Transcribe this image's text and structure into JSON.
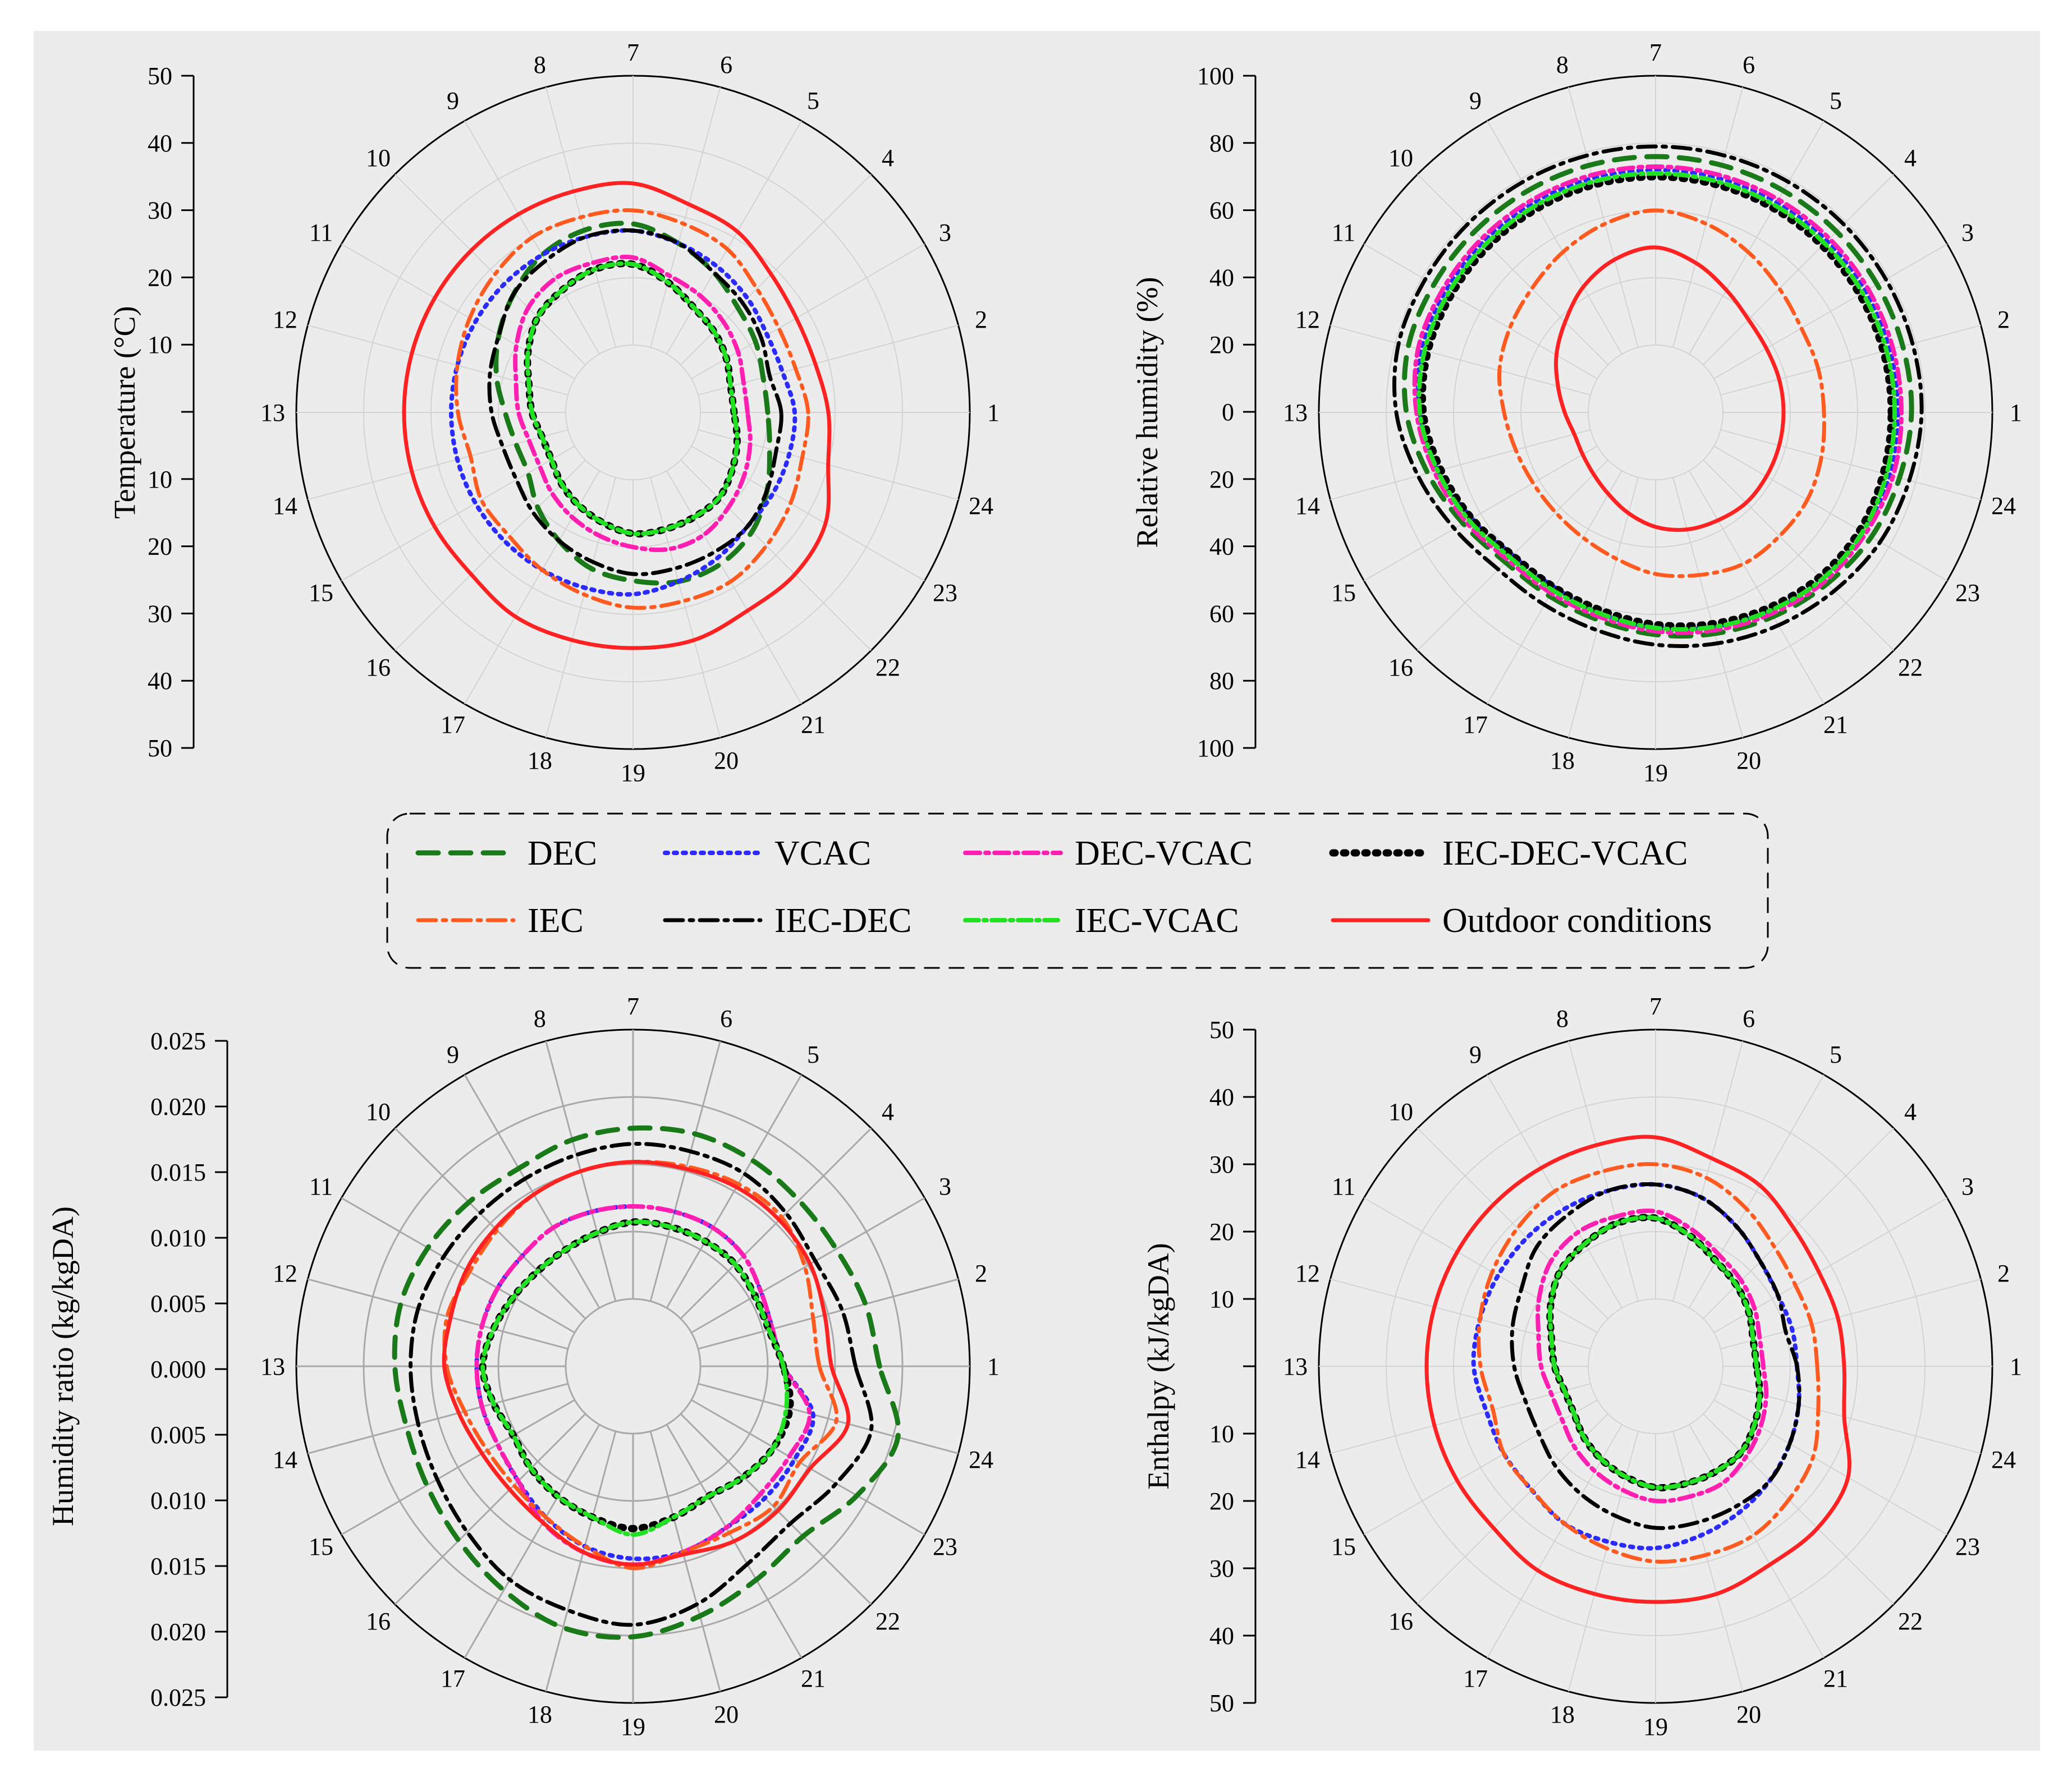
{
  "legend": {
    "items": [
      {
        "label": "DEC",
        "color": "#1a7a1a",
        "dash": "36,22",
        "width": 9
      },
      {
        "label": "VCAC",
        "color": "#2b2bff",
        "dash": "5,11",
        "width": 8
      },
      {
        "label": "DEC-VCAC",
        "color": "#ff1fb0",
        "dash": "26,10,6,10",
        "width": 8
      },
      {
        "label": "IEC-DEC-VCAC",
        "color": "#000000",
        "dash": "4,15",
        "width": 13
      },
      {
        "label": "IEC",
        "color": "#ff5a1f",
        "dash": "32,12,6,12",
        "width": 7
      },
      {
        "label": "IEC-DEC",
        "color": "#000000",
        "dash": "32,12,6,12",
        "width": 7
      },
      {
        "label": "IEC-VCAC",
        "color": "#22e022",
        "dash": "24,9,5,9",
        "width": 8
      },
      {
        "label": "Outdoor conditions",
        "color": "#ff2222",
        "dash": "",
        "width": 7
      }
    ]
  },
  "hour_labels": [
    "1",
    "2",
    "3",
    "4",
    "5",
    "6",
    "7",
    "8",
    "9",
    "10",
    "11",
    "12",
    "13",
    "14",
    "15",
    "16",
    "17",
    "18",
    "19",
    "20",
    "21",
    "22",
    "23",
    "24"
  ],
  "chart_data": [
    {
      "type": "radar",
      "id": "temperature",
      "ylabel": "Temperature (°C)",
      "radial_range": [
        0,
        50
      ],
      "axis_ticks": [
        "50",
        "40",
        "30",
        "20",
        "10",
        "",
        "10",
        "20",
        "30",
        "40",
        "50"
      ],
      "grid_color": "#d3d3d3",
      "series": [
        {
          "name": "DEC",
          "values": [
            20,
            20,
            21,
            22,
            24,
            26,
            28,
            28,
            27,
            25,
            23,
            21,
            19,
            18,
            18,
            20,
            22,
            24,
            25,
            26,
            26,
            25,
            23,
            21
          ]
        },
        {
          "name": "VCAC",
          "values": [
            24,
            23,
            23,
            24,
            25,
            26,
            27,
            27,
            27,
            27,
            27,
            27,
            27,
            27,
            27,
            27,
            27,
            27,
            27,
            26,
            25,
            24,
            24,
            24
          ]
        },
        {
          "name": "DEC-VCAC",
          "values": [
            17,
            17,
            18,
            19,
            20,
            21,
            23,
            23,
            23,
            22,
            20,
            18,
            17,
            16,
            16,
            17,
            18,
            19,
            20,
            21,
            21,
            20,
            19,
            18
          ]
        },
        {
          "name": "IEC-DEC-VCAC",
          "values": [
            15,
            15,
            16,
            17,
            18,
            20,
            22,
            22,
            21,
            20,
            18,
            16,
            15,
            14,
            14,
            15,
            16,
            17,
            18,
            18,
            18,
            18,
            17,
            16
          ]
        },
        {
          "name": "IEC",
          "values": [
            26,
            25,
            25,
            26,
            28,
            29,
            30,
            30,
            30,
            29,
            28,
            27,
            26,
            25,
            26,
            26,
            27,
            28,
            29,
            29,
            29,
            28,
            27,
            26
          ]
        },
        {
          "name": "IEC-DEC",
          "values": [
            22,
            21,
            22,
            23,
            24,
            26,
            27,
            27,
            26,
            25,
            23,
            22,
            21,
            20,
            20,
            21,
            22,
            23,
            24,
            24,
            24,
            24,
            23,
            22
          ]
        },
        {
          "name": "IEC-VCAC",
          "values": [
            15,
            15,
            16,
            17,
            18,
            20,
            22,
            22,
            21,
            20,
            18,
            16,
            15,
            14,
            14,
            15,
            16,
            17,
            18,
            18,
            18,
            18,
            17,
            16
          ]
        },
        {
          "name": "Outdoor conditions",
          "values": [
            29,
            28,
            28,
            29,
            31,
            32,
            34,
            34,
            34,
            34,
            34,
            34,
            34,
            34,
            34,
            34,
            35,
            35,
            35,
            35,
            34,
            34,
            33,
            30
          ]
        }
      ]
    },
    {
      "type": "radar",
      "id": "relative-humidity",
      "ylabel": "Relative humidity (%)",
      "radial_range": [
        0,
        100
      ],
      "axis_ticks": [
        "100",
        "80",
        "60",
        "40",
        "20",
        "0",
        "20",
        "40",
        "60",
        "80",
        "100"
      ],
      "grid_color": "#d3d3d3",
      "series": [
        {
          "name": "DEC",
          "values": [
            76,
            76,
            76,
            76,
            76,
            76,
            76,
            76,
            76,
            76,
            76,
            76,
            74,
            70,
            66,
            63,
            63,
            64,
            66,
            68,
            70,
            72,
            74,
            75
          ]
        },
        {
          "name": "VCAC",
          "values": [
            72,
            72,
            72,
            72,
            72,
            72,
            72,
            72,
            72,
            72,
            72,
            72,
            70,
            67,
            63,
            60,
            60,
            62,
            64,
            66,
            68,
            70,
            71,
            72
          ]
        },
        {
          "name": "DEC-VCAC",
          "values": [
            73,
            73,
            73,
            73,
            73,
            73,
            73,
            73,
            73,
            73,
            73,
            73,
            71,
            68,
            65,
            62,
            62,
            63,
            65,
            67,
            69,
            71,
            72,
            73
          ]
        },
        {
          "name": "IEC-DEC-VCAC",
          "values": [
            70,
            70,
            70,
            70,
            70,
            70,
            70,
            70,
            70,
            70,
            70,
            70,
            69,
            66,
            63,
            60,
            60,
            61,
            63,
            65,
            67,
            69,
            70,
            70
          ]
        },
        {
          "name": "IEC",
          "values": [
            50,
            50,
            50,
            52,
            55,
            58,
            60,
            58,
            55,
            52,
            50,
            48,
            45,
            43,
            42,
            42,
            43,
            45,
            48,
            50,
            52,
            52,
            52,
            51
          ]
        },
        {
          "name": "IEC-DEC",
          "values": [
            79,
            79,
            79,
            79,
            79,
            79,
            79,
            79,
            79,
            79,
            79,
            79,
            77,
            73,
            69,
            66,
            66,
            67,
            69,
            71,
            73,
            75,
            77,
            78
          ]
        },
        {
          "name": "IEC-VCAC",
          "values": [
            71,
            71,
            71,
            71,
            71,
            71,
            71,
            71,
            71,
            71,
            71,
            71,
            70,
            67,
            64,
            61,
            61,
            62,
            64,
            66,
            68,
            70,
            71,
            71
          ]
        },
        {
          "name": "Outdoor conditions",
          "values": [
            38,
            38,
            38,
            39,
            42,
            46,
            49,
            47,
            43,
            38,
            34,
            30,
            27,
            25,
            25,
            26,
            28,
            31,
            34,
            36,
            37,
            38,
            38,
            38
          ]
        }
      ]
    },
    {
      "type": "radar",
      "id": "humidity-ratio",
      "ylabel": "Humidity ratio (kg/kgDA)",
      "radial_range": [
        0,
        0.028
      ],
      "axis_ticks": [
        "0.025",
        "0.020",
        "0.015",
        "0.010",
        "0.005",
        "0.000",
        "0.005",
        "0.010",
        "0.015",
        "0.020",
        "0.025"
      ],
      "grid_color": "#a9a9a9",
      "series": [
        {
          "name": "DEC",
          "values": [
            0.0205,
            0.02,
            0.0195,
            0.0195,
            0.0198,
            0.02,
            0.0198,
            0.0195,
            0.019,
            0.0193,
            0.0197,
            0.02,
            0.0198,
            0.0195,
            0.0198,
            0.0205,
            0.0215,
            0.0225,
            0.0225,
            0.0215,
            0.0205,
            0.02,
            0.0215,
            0.0228
          ]
        },
        {
          "name": "VCAC",
          "values": [
            0.0125,
            0.012,
            0.0123,
            0.013,
            0.0133,
            0.0133,
            0.0133,
            0.0133,
            0.0133,
            0.013,
            0.013,
            0.013,
            0.013,
            0.013,
            0.013,
            0.0135,
            0.0145,
            0.0155,
            0.016,
            0.016,
            0.0155,
            0.0155,
            0.0155,
            0.0155
          ]
        },
        {
          "name": "DEC-VCAC",
          "values": [
            0.0125,
            0.012,
            0.0123,
            0.013,
            0.0133,
            0.0133,
            0.0133,
            0.0133,
            0.0133,
            0.013,
            0.013,
            0.013,
            0.013,
            0.013,
            0.013,
            0.0135,
            0.015,
            0.016,
            0.0165,
            0.016,
            0.0155,
            0.015,
            0.015,
            0.0152
          ]
        },
        {
          "name": "IEC-DEC-VCAC",
          "values": [
            0.0125,
            0.0117,
            0.0117,
            0.012,
            0.012,
            0.012,
            0.012,
            0.0115,
            0.0112,
            0.0112,
            0.0115,
            0.012,
            0.0125,
            0.012,
            0.0115,
            0.012,
            0.0125,
            0.013,
            0.0135,
            0.013,
            0.0125,
            0.013,
            0.0135,
            0.0135
          ]
        },
        {
          "name": "IEC",
          "values": [
            0.0155,
            0.0155,
            0.0165,
            0.0175,
            0.0175,
            0.0172,
            0.017,
            0.0168,
            0.0165,
            0.016,
            0.0157,
            0.016,
            0.0155,
            0.0145,
            0.014,
            0.014,
            0.0145,
            0.0155,
            0.0168,
            0.016,
            0.016,
            0.0165,
            0.016,
            0.0175
          ]
        },
        {
          "name": "IEC-DEC",
          "values": [
            0.0185,
            0.018,
            0.0175,
            0.018,
            0.0185,
            0.0185,
            0.0185,
            0.0182,
            0.018,
            0.018,
            0.0182,
            0.0185,
            0.0185,
            0.0185,
            0.0188,
            0.0195,
            0.0205,
            0.021,
            0.0215,
            0.0205,
            0.019,
            0.0185,
            0.0195,
            0.0205
          ]
        },
        {
          "name": "IEC-VCAC",
          "values": [
            0.0125,
            0.0117,
            0.0117,
            0.012,
            0.012,
            0.012,
            0.012,
            0.0115,
            0.0112,
            0.0112,
            0.0115,
            0.012,
            0.0125,
            0.012,
            0.0115,
            0.012,
            0.0125,
            0.013,
            0.014,
            0.013,
            0.0125,
            0.013,
            0.0135,
            0.0132
          ]
        },
        {
          "name": "Outdoor conditions",
          "values": [
            0.0165,
            0.0165,
            0.017,
            0.0172,
            0.0172,
            0.017,
            0.017,
            0.0168,
            0.0165,
            0.0162,
            0.016,
            0.0157,
            0.0157,
            0.015,
            0.0145,
            0.0145,
            0.015,
            0.016,
            0.0165,
            0.0162,
            0.0168,
            0.017,
            0.017,
            0.0185
          ]
        }
      ]
    },
    {
      "type": "radar",
      "id": "enthalpy",
      "ylabel": "Enthalpy (kJ/kgDA)",
      "radial_range": [
        0,
        50
      ],
      "axis_ticks": [
        "50",
        "40",
        "30",
        "20",
        "10",
        "",
        "10",
        "20",
        "30",
        "40",
        "50"
      ],
      "grid_color": "#d3d3d3",
      "series": [
        {
          "name": "DEC",
          "values": [
            15,
            15,
            16,
            17,
            18,
            20,
            22,
            22,
            21,
            20,
            18,
            16,
            15,
            14,
            14,
            15,
            16,
            17,
            18,
            18,
            18,
            18,
            17,
            16
          ]
        },
        {
          "name": "VCAC",
          "values": [
            21,
            21,
            21,
            22,
            24,
            26,
            27,
            27,
            27,
            27,
            27,
            27,
            27,
            26,
            26,
            26,
            27,
            27,
            27,
            26,
            25,
            24,
            23,
            22
          ]
        },
        {
          "name": "DEC-VCAC",
          "values": [
            16,
            16,
            17,
            18,
            19,
            21,
            23,
            23,
            23,
            22,
            20,
            18,
            17,
            16,
            16,
            17,
            18,
            19,
            20,
            20,
            20,
            19,
            18,
            17
          ]
        },
        {
          "name": "IEC-DEC-VCAC",
          "values": [
            15,
            15,
            16,
            17,
            18,
            20,
            22,
            22,
            21,
            20,
            18,
            16,
            15,
            14,
            14,
            15,
            16,
            17,
            18,
            18,
            18,
            18,
            17,
            16
          ]
        },
        {
          "name": "IEC",
          "values": [
            24,
            24,
            24,
            25,
            27,
            29,
            30,
            30,
            30,
            29,
            28,
            27,
            26,
            25,
            26,
            26,
            27,
            28,
            29,
            29,
            29,
            28,
            27,
            25
          ]
        },
        {
          "name": "IEC-DEC",
          "values": [
            21,
            20,
            21,
            22,
            24,
            26,
            27,
            27,
            26,
            25,
            23,
            22,
            21,
            20,
            20,
            21,
            22,
            23,
            24,
            24,
            24,
            24,
            23,
            22
          ]
        },
        {
          "name": "IEC-VCAC",
          "values": [
            15,
            15,
            16,
            17,
            18,
            20,
            22,
            22,
            21,
            20,
            18,
            16,
            15,
            14,
            14,
            15,
            16,
            17,
            18,
            18,
            18,
            18,
            17,
            16
          ]
        },
        {
          "name": "Outdoor conditions",
          "values": [
            28,
            28,
            28,
            29,
            31,
            32,
            34,
            34,
            34,
            34,
            34,
            34,
            34,
            34,
            34,
            34,
            35,
            35,
            35,
            35,
            34,
            34,
            33,
            29
          ]
        }
      ]
    }
  ]
}
